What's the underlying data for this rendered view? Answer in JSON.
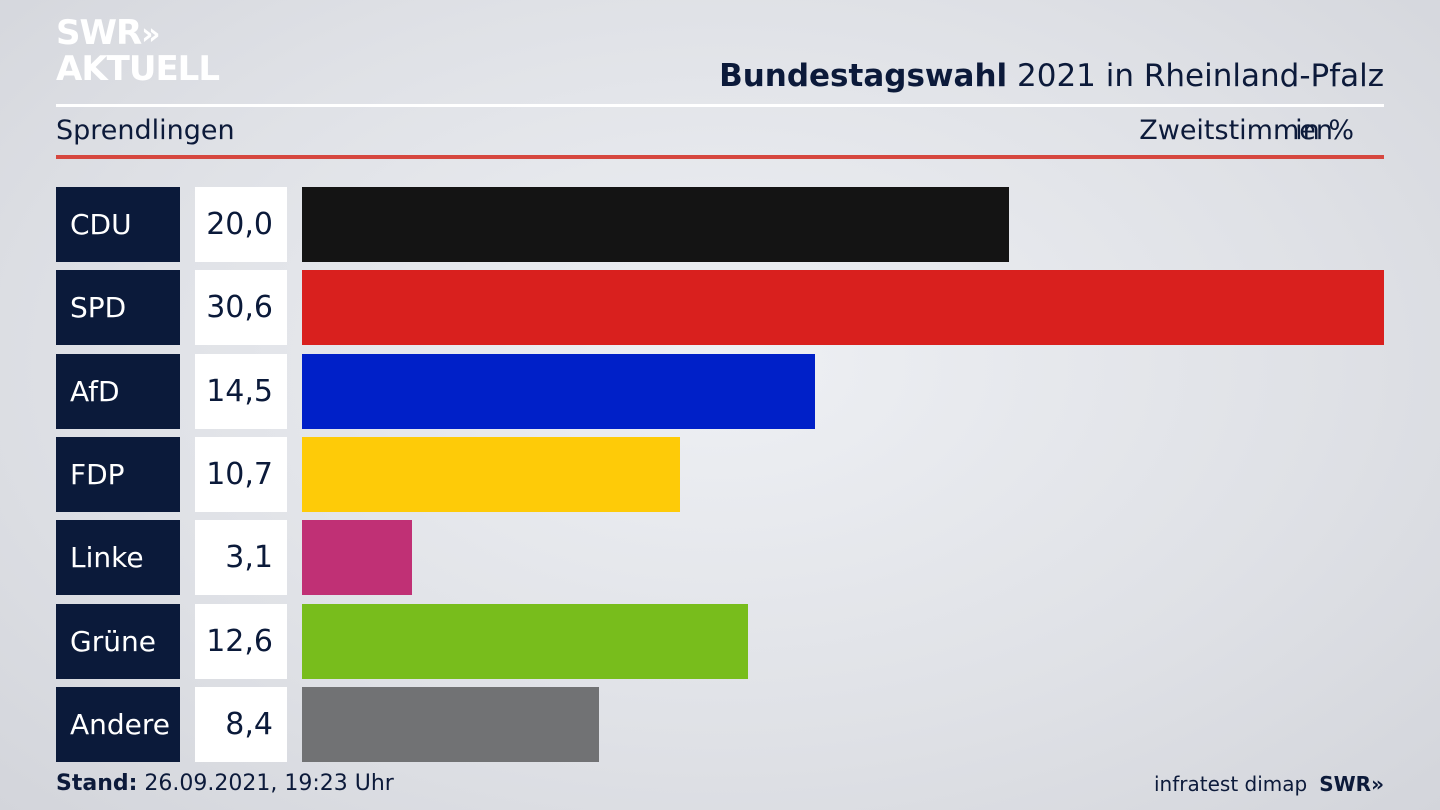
{
  "brand": {
    "line1": "SWR",
    "chevrons": "»",
    "line2": "AKTUELL"
  },
  "header": {
    "title_bold": "Bundestagswahl",
    "title_rest": " 2021 in Rheinland-Pfalz",
    "subtitle": "Sprendlingen",
    "measure": "Zweitstimmen",
    "unit": "in %"
  },
  "chart_data": {
    "type": "bar",
    "orientation": "horizontal",
    "title": "Bundestagswahl 2021 in Rheinland-Pfalz",
    "subtitle": "Sprendlingen",
    "categories": [
      "CDU",
      "SPD",
      "AfD",
      "FDP",
      "Linke",
      "Grüne",
      "Andere"
    ],
    "values": [
      20.0,
      30.6,
      14.5,
      10.7,
      3.1,
      12.6,
      8.4
    ],
    "value_labels": [
      "20,0",
      "30,6",
      "14,5",
      "10,7",
      "3,1",
      "12,6",
      "8,4"
    ],
    "colors": [
      "#141414",
      "#d9201e",
      "#0020c8",
      "#fecb08",
      "#c03075",
      "#78bd1c",
      "#717274"
    ],
    "xlim": [
      0,
      30.6
    ]
  },
  "footer": {
    "stand_label": "Stand:",
    "stand_value": " 26.09.2021, 19:23 Uhr",
    "source": "infratest dimap",
    "source_brand": "SWR»"
  }
}
